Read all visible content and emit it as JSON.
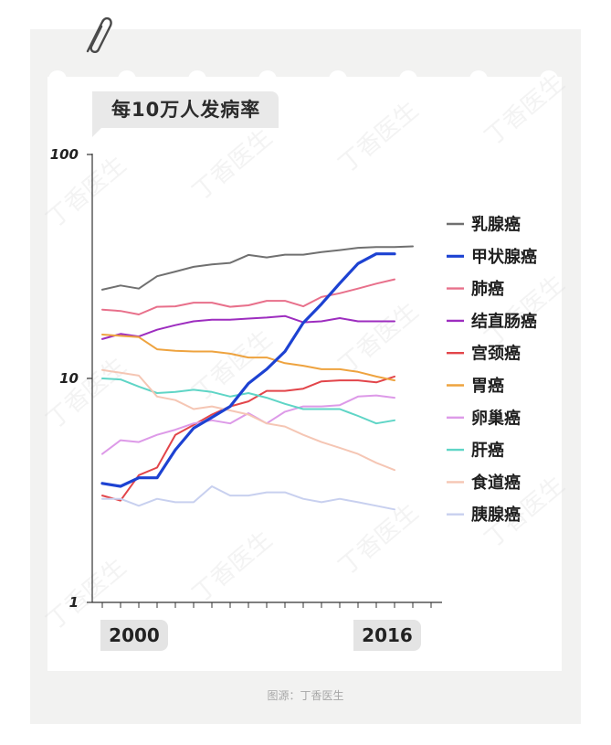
{
  "source_text": "图源：丁香医生",
  "watermark_text": "丁香医生",
  "icons": {
    "decoration": "paperclip-icon"
  },
  "chart_data": {
    "type": "line",
    "title": "每10万人发病率",
    "y_scale": "log",
    "ylim": [
      1,
      100
    ],
    "y_tick_labels": [
      "100",
      "10",
      "1"
    ],
    "y_ticks": [
      100,
      10,
      1
    ],
    "x_start_label": "2000",
    "x_end_label": "2016",
    "x": [
      1998,
      1999,
      2000,
      2001,
      2002,
      2003,
      2004,
      2005,
      2006,
      2007,
      2008,
      2009,
      2010,
      2011,
      2012,
      2013,
      2014,
      2015,
      2016
    ],
    "legend_position": "right",
    "series": [
      {
        "name": "乳腺癌",
        "color": "#707070",
        "width": 2,
        "values": [
          24.9,
          26.0,
          25.2,
          28.6,
          30.0,
          31.5,
          32.3,
          32.8,
          35.6,
          34.7,
          35.7,
          35.7,
          36.7,
          37.4,
          38.3,
          38.6,
          38.6,
          38.9,
          null
        ]
      },
      {
        "name": "甲状腺癌",
        "color": "#1d42d2",
        "width": 3.2,
        "values": [
          3.4,
          3.3,
          3.6,
          3.6,
          4.8,
          6.0,
          6.7,
          7.5,
          9.5,
          11.0,
          13.2,
          17.7,
          21.5,
          26.6,
          32.6,
          36.0,
          36.0,
          null,
          null
        ]
      },
      {
        "name": "肺癌",
        "color": "#e8708b",
        "width": 2,
        "values": [
          20.3,
          20.0,
          19.3,
          20.9,
          21.0,
          21.8,
          21.8,
          20.9,
          21.2,
          22.2,
          22.2,
          21.0,
          23.1,
          24.0,
          25.2,
          26.5,
          27.7,
          null,
          null
        ]
      },
      {
        "name": "结直肠癌",
        "color": "#9d2dbf",
        "width": 2,
        "values": [
          15.0,
          15.8,
          15.4,
          16.5,
          17.3,
          18.0,
          18.3,
          18.3,
          18.5,
          18.7,
          19.0,
          17.8,
          18.0,
          18.6,
          18.0,
          18.0,
          18.0,
          null,
          null
        ]
      },
      {
        "name": "宫颈癌",
        "color": "#e2454a",
        "width": 2,
        "values": [
          3.0,
          2.85,
          3.7,
          4.0,
          5.6,
          6.2,
          6.9,
          7.5,
          7.9,
          8.8,
          8.8,
          9.0,
          9.7,
          9.8,
          9.8,
          9.6,
          10.2,
          null,
          null
        ]
      },
      {
        "name": "胃癌",
        "color": "#eea33f",
        "width": 2,
        "values": [
          15.7,
          15.5,
          15.3,
          13.5,
          13.3,
          13.2,
          13.2,
          12.9,
          12.4,
          12.4,
          11.7,
          11.4,
          11.0,
          11.0,
          10.7,
          10.2,
          9.8,
          null,
          null
        ]
      },
      {
        "name": "卵巢癌",
        "color": "#dd9ae8",
        "width": 2,
        "values": [
          4.6,
          5.3,
          5.2,
          5.6,
          5.9,
          6.3,
          6.5,
          6.3,
          7.0,
          6.3,
          7.1,
          7.5,
          7.5,
          7.6,
          8.3,
          8.4,
          8.2,
          null,
          null
        ]
      },
      {
        "name": "肝癌",
        "color": "#5fd5c6",
        "width": 2,
        "values": [
          10.0,
          9.9,
          9.2,
          8.6,
          8.7,
          8.9,
          8.7,
          8.3,
          8.6,
          8.2,
          7.7,
          7.3,
          7.3,
          7.3,
          6.8,
          6.3,
          6.5,
          null,
          null
        ]
      },
      {
        "name": "食道癌",
        "color": "#f5c6b4",
        "width": 2,
        "values": [
          10.9,
          10.6,
          10.3,
          8.3,
          8.0,
          7.3,
          7.5,
          7.2,
          6.9,
          6.3,
          6.1,
          5.6,
          5.2,
          4.9,
          4.6,
          4.2,
          3.9,
          null,
          null
        ]
      },
      {
        "name": "胰腺癌",
        "color": "#c8d0ef",
        "width": 2,
        "values": [
          2.9,
          2.9,
          2.7,
          2.9,
          2.8,
          2.8,
          3.3,
          3.0,
          3.0,
          3.1,
          3.1,
          2.9,
          2.8,
          2.9,
          2.8,
          2.7,
          2.6,
          null,
          null
        ]
      }
    ]
  }
}
